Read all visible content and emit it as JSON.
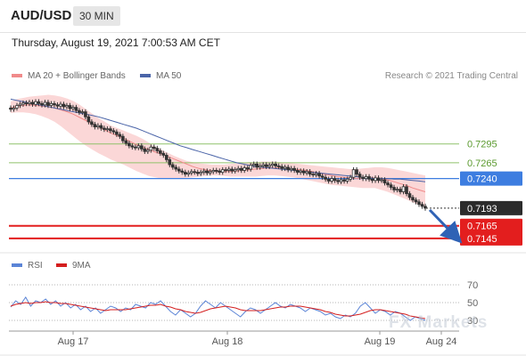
{
  "header": {
    "symbol": "AUD/USD",
    "timeframe": "30 MIN",
    "datetime": "Thursday, August 19, 2021 7:00:53 AM CET"
  },
  "legend": {
    "ma20_label": "MA 20 + Bollinger Bands",
    "ma50_label": "MA 50",
    "copyright": "Research © 2021 Trading Central",
    "rsi_label": "RSI",
    "rsi_ma_label": "9MA"
  },
  "watermark": "FX Markets",
  "colors": {
    "ma20": "#f08a8a",
    "ma50": "#4a64a8",
    "bollinger": "#f9caca",
    "candle": "#333333",
    "level_green": "#8fc26a",
    "level_blue": "#3d7de0",
    "level_red": "#e31e1e",
    "price_tag": "#2b2b2b",
    "rsi": "#5b84d6",
    "rsi_ma": "#d41e1e",
    "arrow": "#2f62b5"
  },
  "chart_data": [
    {
      "type": "candlestick",
      "title": "AUD/USD 30 MIN",
      "x_tick_labels": [
        "Aug 17",
        "Aug 18",
        "Aug 19",
        "Aug 24"
      ],
      "ylim": [
        0.7125,
        0.7385
      ],
      "levels": [
        {
          "value": 0.7295,
          "label": "0.7295",
          "kind": "resistance-minor"
        },
        {
          "value": 0.7265,
          "label": "0.7265",
          "kind": "resistance-minor"
        },
        {
          "value": 0.724,
          "label": "0.7240",
          "kind": "pivot"
        },
        {
          "value": 0.7193,
          "label": "0.7193",
          "kind": "last-price"
        },
        {
          "value": 0.7165,
          "label": "0.7165",
          "kind": "support"
        },
        {
          "value": 0.7145,
          "label": "0.7145",
          "kind": "support"
        }
      ],
      "close_series": [
        0.735,
        0.7352,
        0.7356,
        0.7358,
        0.736,
        0.7359,
        0.7361,
        0.7358,
        0.7362,
        0.7359,
        0.7357,
        0.7361,
        0.7356,
        0.7359,
        0.7357,
        0.7355,
        0.7358,
        0.7354,
        0.7356,
        0.7351,
        0.7353,
        0.7348,
        0.7345,
        0.7346,
        0.7338,
        0.733,
        0.7326,
        0.7322,
        0.7324,
        0.732,
        0.7318,
        0.7319,
        0.7316,
        0.7314,
        0.731,
        0.7307,
        0.73,
        0.7296,
        0.7292,
        0.729,
        0.7289,
        0.7292,
        0.7287,
        0.7283,
        0.7285,
        0.729,
        0.7288,
        0.7284,
        0.728,
        0.7277,
        0.727,
        0.7262,
        0.7258,
        0.7255,
        0.7252,
        0.725,
        0.7247,
        0.7249,
        0.7251,
        0.725,
        0.7248,
        0.725,
        0.7252,
        0.7249,
        0.7251,
        0.7253,
        0.7252,
        0.725,
        0.7254,
        0.7253,
        0.7255,
        0.7252,
        0.7254,
        0.7256,
        0.7253,
        0.7257,
        0.7255,
        0.7261,
        0.7263,
        0.7258,
        0.726,
        0.7262,
        0.7259,
        0.7261,
        0.7263,
        0.726,
        0.7259,
        0.7256,
        0.7258,
        0.7254,
        0.7256,
        0.7253,
        0.725,
        0.7252,
        0.7249,
        0.7251,
        0.7247,
        0.7246,
        0.7248,
        0.7244,
        0.7242,
        0.7239,
        0.7236,
        0.724,
        0.7237,
        0.7235,
        0.7238,
        0.7236,
        0.7239,
        0.7242,
        0.7254,
        0.7247,
        0.7242,
        0.724,
        0.7243,
        0.7239,
        0.7237,
        0.7241,
        0.7237,
        0.7238,
        0.7233,
        0.723,
        0.7226,
        0.7222,
        0.7223,
        0.7219,
        0.7227,
        0.7216,
        0.721,
        0.7206,
        0.7203,
        0.7199,
        0.7196,
        0.7193
      ],
      "ma50": [
        0.7366,
        0.7364,
        0.7362,
        0.736,
        0.7358,
        0.7356,
        0.7354,
        0.7352,
        0.735,
        0.7348,
        0.7346,
        0.7344,
        0.7342,
        0.734,
        0.7338,
        0.7335,
        0.7332,
        0.7329,
        0.7326,
        0.7323,
        0.732,
        0.7316,
        0.7312,
        0.7308,
        0.7304,
        0.73,
        0.7296,
        0.7292,
        0.7289,
        0.7286,
        0.7283,
        0.728,
        0.7277,
        0.7274,
        0.7271,
        0.7268,
        0.7265,
        0.7263,
        0.7261,
        0.7259,
        0.7258,
        0.7257,
        0.7256,
        0.7255,
        0.7254,
        0.7253,
        0.7252,
        0.7251,
        0.725,
        0.7249,
        0.7248,
        0.7247,
        0.7246,
        0.7245,
        0.7244,
        0.7243,
        0.7242,
        0.7241,
        0.724,
        0.724,
        0.724,
        0.7239,
        0.7239,
        0.7238,
        0.7237,
        0.7236,
        0.7235
      ],
      "ma20": [
        0.7352,
        0.7355,
        0.7356,
        0.7357,
        0.7356,
        0.7355,
        0.7354,
        0.7352,
        0.7349,
        0.7346,
        0.7342,
        0.7337,
        0.7332,
        0.7327,
        0.7322,
        0.7317,
        0.7312,
        0.7308,
        0.7304,
        0.7299,
        0.7294,
        0.729,
        0.7286,
        0.7282,
        0.7279,
        0.7275,
        0.7271,
        0.7267,
        0.7263,
        0.7259,
        0.7256,
        0.7254,
        0.7252,
        0.7251,
        0.7251,
        0.7251,
        0.7252,
        0.7253,
        0.7254,
        0.7255,
        0.7256,
        0.7257,
        0.7257,
        0.7257,
        0.7256,
        0.7255,
        0.7254,
        0.7253,
        0.7251,
        0.7249,
        0.7247,
        0.7245,
        0.7243,
        0.7242,
        0.7241,
        0.724,
        0.724,
        0.7241,
        0.7241,
        0.724,
        0.7238,
        0.7235,
        0.7232,
        0.7229,
        0.7225,
        0.7222,
        0.7219
      ],
      "boll_upper": [
        0.7362,
        0.7366,
        0.7368,
        0.737,
        0.7371,
        0.7372,
        0.7373,
        0.7372,
        0.737,
        0.7367,
        0.7363,
        0.7357,
        0.735,
        0.7343,
        0.7336,
        0.733,
        0.7324,
        0.732,
        0.7316,
        0.7312,
        0.7308,
        0.7303,
        0.7297,
        0.7291,
        0.7286,
        0.7281,
        0.7276,
        0.7272,
        0.7268,
        0.7266,
        0.7264,
        0.7263,
        0.7262,
        0.7262,
        0.7262,
        0.7263,
        0.7264,
        0.7265,
        0.7266,
        0.7266,
        0.7267,
        0.7267,
        0.7267,
        0.7266,
        0.7265,
        0.7264,
        0.7263,
        0.7262,
        0.7261,
        0.726,
        0.7259,
        0.7258,
        0.7257,
        0.7256,
        0.7255,
        0.7255,
        0.7256,
        0.7257,
        0.7258,
        0.7258,
        0.7257,
        0.7255,
        0.7253,
        0.7251,
        0.7249,
        0.7247,
        0.7245
      ],
      "boll_lower": [
        0.7344,
        0.7345,
        0.7345,
        0.7344,
        0.7342,
        0.7339,
        0.7335,
        0.733,
        0.7323,
        0.7315,
        0.7307,
        0.7299,
        0.7292,
        0.7286,
        0.728,
        0.7275,
        0.727,
        0.7266,
        0.7262,
        0.7257,
        0.7252,
        0.7248,
        0.7244,
        0.7242,
        0.724,
        0.724,
        0.724,
        0.724,
        0.7241,
        0.7242,
        0.7243,
        0.7244,
        0.7245,
        0.7245,
        0.7244,
        0.7243,
        0.7243,
        0.7243,
        0.7243,
        0.7243,
        0.7244,
        0.7245,
        0.7245,
        0.7244,
        0.7243,
        0.7242,
        0.724,
        0.7238,
        0.7236,
        0.7234,
        0.7232,
        0.723,
        0.7229,
        0.7228,
        0.7227,
        0.7226,
        0.7225,
        0.7225,
        0.7225,
        0.7222,
        0.7219,
        0.7215,
        0.7211,
        0.7207,
        0.7202,
        0.7198,
        0.7194
      ],
      "projection": {
        "from": 0.7193,
        "to": 0.7145
      }
    },
    {
      "type": "line",
      "title": "RSI",
      "ylim": [
        20,
        80
      ],
      "y_ticks": [
        30,
        50,
        70
      ],
      "series": [
        {
          "name": "RSI",
          "values": [
            45,
            52,
            48,
            56,
            46,
            52,
            50,
            54,
            48,
            52,
            46,
            50,
            44,
            48,
            42,
            46,
            40,
            44,
            38,
            42,
            46,
            44,
            40,
            44,
            42,
            48,
            46,
            44,
            50,
            48,
            52,
            46,
            40,
            36,
            42,
            38,
            34,
            38,
            46,
            52,
            48,
            44,
            50,
            46,
            42,
            38,
            34,
            40,
            44,
            42,
            38,
            42,
            46,
            50,
            46,
            44,
            48,
            46,
            44,
            40,
            44,
            42,
            40,
            36,
            38,
            34,
            32,
            36,
            34,
            38,
            46,
            50,
            44,
            38,
            42,
            40,
            36,
            40,
            38,
            34,
            30,
            34,
            32,
            30
          ]
        },
        {
          "name": "9MA",
          "values": [
            46,
            48,
            49,
            50,
            49,
            50,
            50,
            51,
            50,
            50,
            49,
            49,
            48,
            47,
            46,
            45,
            44,
            43,
            42,
            41,
            42,
            42,
            42,
            42,
            43,
            44,
            45,
            46,
            47,
            47,
            48,
            46,
            45,
            43,
            42,
            40,
            39,
            38,
            39,
            41,
            43,
            44,
            45,
            46,
            45,
            44,
            42,
            41,
            41,
            41,
            41,
            42,
            43,
            44,
            45,
            45,
            46,
            46,
            46,
            45,
            44,
            43,
            42,
            40,
            39,
            37,
            36,
            35,
            35,
            36,
            37,
            39,
            41,
            42,
            42,
            41,
            40,
            39,
            38,
            37,
            35,
            34,
            33,
            32
          ]
        }
      ]
    }
  ]
}
